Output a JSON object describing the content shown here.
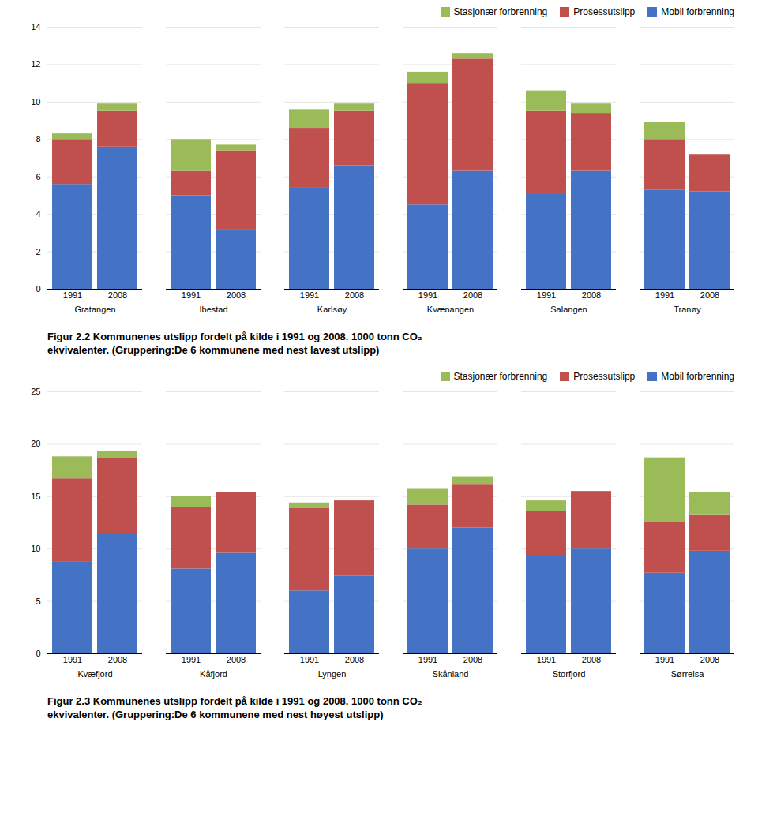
{
  "chart_data": [
    {
      "type": "bar",
      "stacked": true,
      "title": "Figur 2.2 Kommunenes utslipp fordelt på kilde i 1991 og 2008. 1000 tonn CO₂",
      "subtitle": "ekvivalenter. (Gruppering:De 6 kommunene med nest lavest utslipp)",
      "groups": [
        "Gratangen",
        "Ibestad",
        "Karlsøy",
        "Kvænangen",
        "Salangen",
        "Tranøy"
      ],
      "categories": [
        "1991",
        "2008",
        "1991",
        "2008",
        "1991",
        "2008",
        "1991",
        "2008",
        "1991",
        "2008",
        "1991",
        "2008"
      ],
      "series": [
        {
          "name": "Mobil forbrenning",
          "color": "#4472C4",
          "values": [
            5.6,
            7.6,
            5.0,
            3.2,
            5.4,
            6.6,
            4.5,
            6.3,
            5.1,
            6.3,
            5.3,
            5.2
          ]
        },
        {
          "name": "Prosessutslipp",
          "color": "#C0504D",
          "values": [
            2.4,
            1.9,
            1.3,
            4.2,
            3.2,
            2.9,
            6.5,
            6.0,
            4.4,
            3.1,
            2.7,
            2.0
          ]
        },
        {
          "name": "Stasjonær forbrenning",
          "color": "#9BBB59",
          "values": [
            0.3,
            0.4,
            1.7,
            0.3,
            1.0,
            0.4,
            0.6,
            0.3,
            1.1,
            0.5,
            0.9,
            0.0
          ]
        }
      ],
      "ylim": [
        0,
        14
      ],
      "yticks": [
        0,
        2,
        4,
        6,
        8,
        10,
        12,
        14
      ],
      "grid": true,
      "legend": "upper right"
    },
    {
      "type": "bar",
      "stacked": true,
      "title": "Figur 2.3 Kommunenes utslipp fordelt på kilde i 1991 og 2008. 1000 tonn CO₂",
      "subtitle": "ekvivalenter. (Gruppering:De 6 kommunene med nest høyest utslipp)",
      "groups": [
        "Kvæfjord",
        "Kåfjord",
        "Lyngen",
        "Skånland",
        "Storfjord",
        "Sørreisa"
      ],
      "categories": [
        "1991",
        "2008",
        "1991",
        "2008",
        "1991",
        "2008",
        "1991",
        "2008",
        "1991",
        "2008",
        "1991",
        "2008"
      ],
      "series": [
        {
          "name": "Mobil forbrenning",
          "color": "#4472C4",
          "values": [
            8.8,
            11.5,
            8.1,
            9.6,
            6.0,
            7.4,
            10.0,
            12.0,
            9.3,
            10.0,
            7.7,
            9.8
          ]
        },
        {
          "name": "Prosessutslipp",
          "color": "#C0504D",
          "values": [
            7.9,
            7.1,
            5.9,
            5.8,
            7.9,
            7.2,
            4.2,
            4.1,
            4.3,
            5.5,
            4.8,
            3.4
          ]
        },
        {
          "name": "Stasjonær forbrenning",
          "color": "#9BBB59",
          "values": [
            2.1,
            0.7,
            1.0,
            0.0,
            0.5,
            0.0,
            1.5,
            0.8,
            1.0,
            0.0,
            6.2,
            2.2
          ]
        }
      ],
      "ylim": [
        0,
        25
      ],
      "yticks": [
        0,
        5,
        10,
        15,
        20,
        25
      ],
      "grid": true,
      "legend": "upper right"
    }
  ]
}
